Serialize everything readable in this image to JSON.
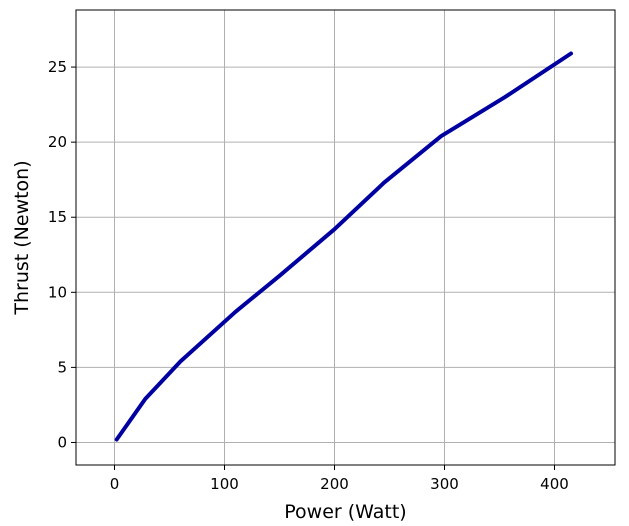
{
  "chart_data": {
    "type": "line",
    "title": "",
    "xlabel": "Power (Watt)",
    "ylabel": "Thrust (Newton)",
    "xlim": [
      -35,
      455
    ],
    "ylim": [
      -1.5,
      28.8
    ],
    "xticks": [
      0,
      100,
      200,
      300,
      400
    ],
    "yticks": [
      0,
      5,
      10,
      15,
      20,
      25
    ],
    "grid": true,
    "legend": "none",
    "series": [
      {
        "color": "#0000a0",
        "x": [
          2,
          28,
          60,
          110,
          150,
          200,
          245,
          297,
          355,
          415
        ],
        "y": [
          0.2,
          2.9,
          5.4,
          8.7,
          11.1,
          14.2,
          17.3,
          20.4,
          23.0,
          25.9
        ]
      }
    ]
  }
}
